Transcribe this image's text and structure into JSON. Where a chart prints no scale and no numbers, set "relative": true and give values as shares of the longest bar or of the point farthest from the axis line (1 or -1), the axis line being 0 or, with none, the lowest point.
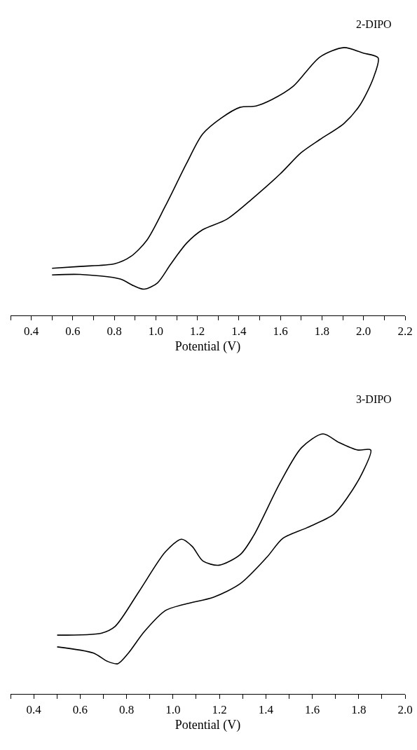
{
  "chart_data": [
    {
      "type": "line",
      "xlabel": "Potential (V)",
      "relative": true,
      "tick_labels": "x",
      "legend": false,
      "marker": "none",
      "line_style": "solid",
      "xlim": [
        0.3,
        2.2
      ],
      "xticks": [
        {
          "value": 0.3,
          "label": null
        },
        0.4,
        {
          "value": 0.5,
          "label": null
        },
        0.6,
        {
          "value": 0.7,
          "label": null
        },
        0.8,
        {
          "value": 0.9,
          "label": null
        },
        {
          "value": 1,
          "label": "1.0"
        },
        {
          "value": 1.1,
          "label": null
        },
        1.2,
        {
          "value": 1.3,
          "label": null
        },
        1.4,
        {
          "value": 1.5,
          "label": null
        },
        1.6,
        {
          "value": 1.7,
          "label": null
        },
        1.8,
        {
          "value": 1.9,
          "label": null
        },
        {
          "value": 2,
          "label": "2.0"
        },
        {
          "value": 2.1,
          "label": null
        },
        2.2
      ],
      "series": [
        {
          "name": "2-DIPO",
          "color": "#000000",
          "x": [
            0.5,
            0.635,
            0.802,
            0.879,
            0.956,
            1.046,
            1.148,
            1.225,
            1.315,
            1.405,
            1.482,
            1.559,
            1.662,
            1.79,
            1.906,
            1.996,
            2.07,
            2.047,
            1.983,
            1.906,
            1.79,
            1.7,
            1.598,
            1.469,
            1.341,
            1.225,
            1.148,
            1.071,
            1.007,
            0.943,
            0.892,
            0.828,
            0.635,
            0.5
          ],
          "values": [
            0.176,
            0.183,
            0.193,
            0.22,
            0.28,
            0.409,
            0.568,
            0.677,
            0.737,
            0.777,
            0.782,
            0.806,
            0.856,
            0.965,
            1.0,
            0.98,
            0.962,
            0.886,
            0.786,
            0.717,
            0.657,
            0.608,
            0.528,
            0.439,
            0.359,
            0.32,
            0.27,
            0.191,
            0.121,
            0.098,
            0.111,
            0.136,
            0.153,
            0.151
          ]
        }
      ]
    },
    {
      "type": "line",
      "xlabel": "Potential (V)",
      "relative": true,
      "tick_labels": "x",
      "legend": false,
      "marker": "none",
      "line_style": "solid",
      "xlim": [
        0.3,
        2.0
      ],
      "xticks": [
        {
          "value": 0.3,
          "label": null
        },
        0.4,
        {
          "value": 0.5,
          "label": null
        },
        0.6,
        {
          "value": 0.7,
          "label": null
        },
        0.8,
        {
          "value": 0.9,
          "label": null
        },
        {
          "value": 1,
          "label": "1.0"
        },
        {
          "value": 1.1,
          "label": null
        },
        1.2,
        {
          "value": 1.3,
          "label": null
        },
        1.4,
        {
          "value": 1.5,
          "label": null
        },
        1.6,
        {
          "value": 1.7,
          "label": null
        },
        1.8,
        {
          "value": 1.9,
          "label": null
        },
        {
          "value": 2,
          "label": "2.0"
        }
      ],
      "series": [
        {
          "name": "3-DIPO",
          "color": "#000000",
          "x": [
            0.501,
            0.693,
            0.75,
            0.853,
            0.968,
            1.037,
            1.083,
            1.129,
            1.198,
            1.29,
            1.347,
            1.462,
            1.554,
            1.646,
            1.715,
            1.795,
            1.852,
            1.818,
            1.749,
            1.692,
            1.577,
            1.473,
            1.405,
            1.29,
            1.175,
            1.06,
            0.968,
            0.876,
            0.808,
            0.762,
            0.716,
            0.658,
            0.501
          ],
          "values": [
            0.226,
            0.234,
            0.259,
            0.393,
            0.547,
            0.595,
            0.567,
            0.511,
            0.495,
            0.536,
            0.608,
            0.813,
            0.947,
            1.0,
            0.967,
            0.938,
            0.938,
            0.854,
            0.752,
            0.69,
            0.639,
            0.598,
            0.526,
            0.424,
            0.372,
            0.347,
            0.321,
            0.239,
            0.157,
            0.116,
            0.126,
            0.157,
            0.181
          ]
        }
      ]
    }
  ]
}
